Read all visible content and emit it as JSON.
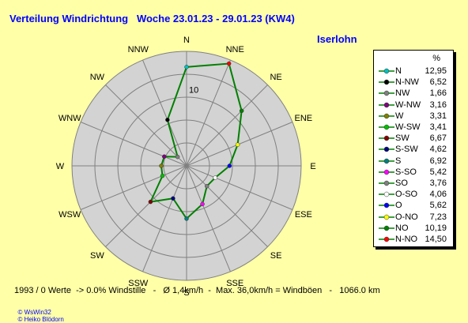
{
  "header": {
    "title": "Verteilung Windrichtung   Woche 23.01.23 - 29.01.23 (KW4)",
    "station": "Iserlohn"
  },
  "legend": {
    "unit": "%"
  },
  "footer": {
    "stats": "1993 / 0 Werte  -> 0.0% Windstille   -   Ø 1,4km/h  -  Max. 36,0km/h = Windböen   -   1066.0 km"
  },
  "credits": {
    "left": "© WsWin32",
    "right": "© Heiko Blödorn"
  },
  "colors": {
    "background": "#ffffa8",
    "disc": "#d3d3d3",
    "grid": "#808080",
    "line": "#008000",
    "header": "#0000ff"
  },
  "chart_data": {
    "type": "radar",
    "title": "Verteilung Windrichtung   Woche 23.01.23 - 29.01.23 (KW4)",
    "unit": "%",
    "radial_tick_labels": [
      "10"
    ],
    "directions": [
      "N",
      "NNE",
      "NE",
      "ENE",
      "E",
      "ESE",
      "SE",
      "SSE",
      "S",
      "SSW",
      "SW",
      "WSW",
      "W",
      "WNW",
      "NW",
      "NNW"
    ],
    "legend": [
      {
        "label": "N",
        "value": "12,95",
        "color": "#00c0c0"
      },
      {
        "label": "N-NW",
        "value": "6,52",
        "color": "#000000"
      },
      {
        "label": "NW",
        "value": "1,66",
        "color": "#808080"
      },
      {
        "label": "W-NW",
        "value": "3,16",
        "color": "#800080"
      },
      {
        "label": "W",
        "value": "3,31",
        "color": "#808000"
      },
      {
        "label": "W-SW",
        "value": "3,41",
        "color": "#00c000"
      },
      {
        "label": "SW",
        "value": "6,67",
        "color": "#800000"
      },
      {
        "label": "S-SW",
        "value": "4,62",
        "color": "#000080"
      },
      {
        "label": "S",
        "value": "6,92",
        "color": "#008080"
      },
      {
        "label": "S-SO",
        "value": "5,42",
        "color": "#ff00ff"
      },
      {
        "label": "SO",
        "value": "3,76",
        "color": "#808080"
      },
      {
        "label": "O-SO",
        "value": "4,06",
        "color": "#ffffff"
      },
      {
        "label": "O",
        "value": "5,62",
        "color": "#0000ff"
      },
      {
        "label": "O-NO",
        "value": "7,23",
        "color": "#ffff00"
      },
      {
        "label": "NO",
        "value": "10,19",
        "color": "#008000"
      },
      {
        "label": "N-NO",
        "value": "14,50",
        "color": "#ff0000"
      }
    ],
    "series": {
      "directions": [
        "N",
        "NNE",
        "NE",
        "ENE",
        "E",
        "ESE",
        "SE",
        "SSE",
        "S",
        "SSW",
        "SW",
        "WSW",
        "W",
        "WNW",
        "NW",
        "NNW"
      ],
      "values": [
        12.95,
        14.5,
        10.19,
        7.23,
        5.62,
        4.06,
        3.76,
        5.42,
        6.92,
        4.62,
        6.67,
        3.41,
        3.31,
        3.16,
        1.66,
        6.52
      ],
      "colors": [
        "#00c0c0",
        "#ff0000",
        "#008000",
        "#ffff00",
        "#0000ff",
        "#ffffff",
        "#808080",
        "#ff00ff",
        "#008080",
        "#000080",
        "#800000",
        "#00c000",
        "#808000",
        "#800080",
        "#808080",
        "#000000"
      ]
    },
    "rmax": 15
  }
}
